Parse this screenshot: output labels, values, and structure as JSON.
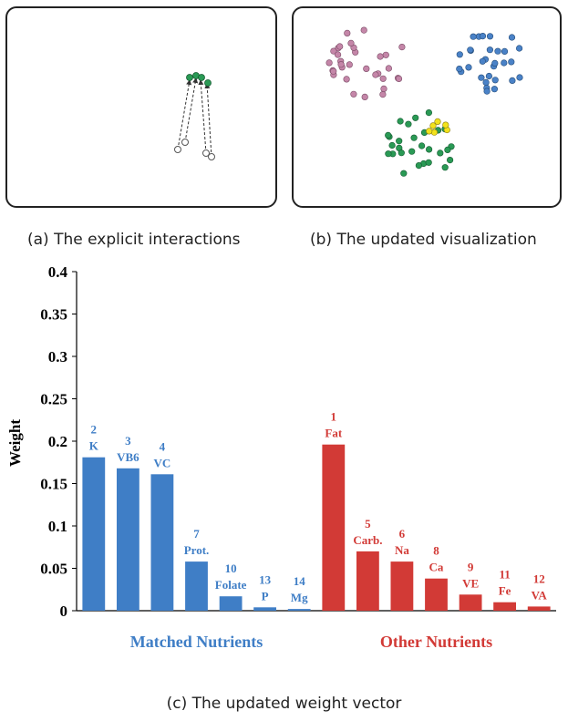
{
  "captions": {
    "a": "(a) The explicit interactions",
    "b": "(b) The updated visualization",
    "c": "(c) The updated weight vector"
  },
  "colors": {
    "matched": "#3f7ec6",
    "other": "#d23a36",
    "cluster_pink": "#c486a8",
    "cluster_blue": "#4a82c7",
    "cluster_green": "#2a9a55",
    "cluster_yellow": "#f2e21c"
  },
  "chart_data": {
    "type": "bar",
    "ylabel": "Weight",
    "ylim": [
      0,
      0.4
    ],
    "yticks": [
      "0",
      "0.05",
      "0.1",
      "0.15",
      "0.2",
      "0.25",
      "0.3",
      "0.35",
      "0.4"
    ],
    "groups": [
      {
        "name": "Matched Nutrients",
        "bars": [
          {
            "rank": "2",
            "label": "K",
            "value": 0.181
          },
          {
            "rank": "3",
            "label": "VB6",
            "value": 0.168
          },
          {
            "rank": "4",
            "label": "VC",
            "value": 0.161
          },
          {
            "rank": "7",
            "label": "Prot.",
            "value": 0.058
          },
          {
            "rank": "10",
            "label": "Folate",
            "value": 0.017
          },
          {
            "rank": "13",
            "label": "P",
            "value": 0.004
          },
          {
            "rank": "14",
            "label": "Mg",
            "value": 0.002
          }
        ]
      },
      {
        "name": "Other Nutrients",
        "bars": [
          {
            "rank": "1",
            "label": "Fat",
            "value": 0.196
          },
          {
            "rank": "5",
            "label": "Carb.",
            "value": 0.07
          },
          {
            "rank": "6",
            "label": "Na",
            "value": 0.058
          },
          {
            "rank": "8",
            "label": "Ca",
            "value": 0.038
          },
          {
            "rank": "9",
            "label": "VE",
            "value": 0.019
          },
          {
            "rank": "11",
            "label": "Fe",
            "value": 0.01
          },
          {
            "rank": "12",
            "label": "VA",
            "value": 0.005
          }
        ]
      }
    ]
  }
}
